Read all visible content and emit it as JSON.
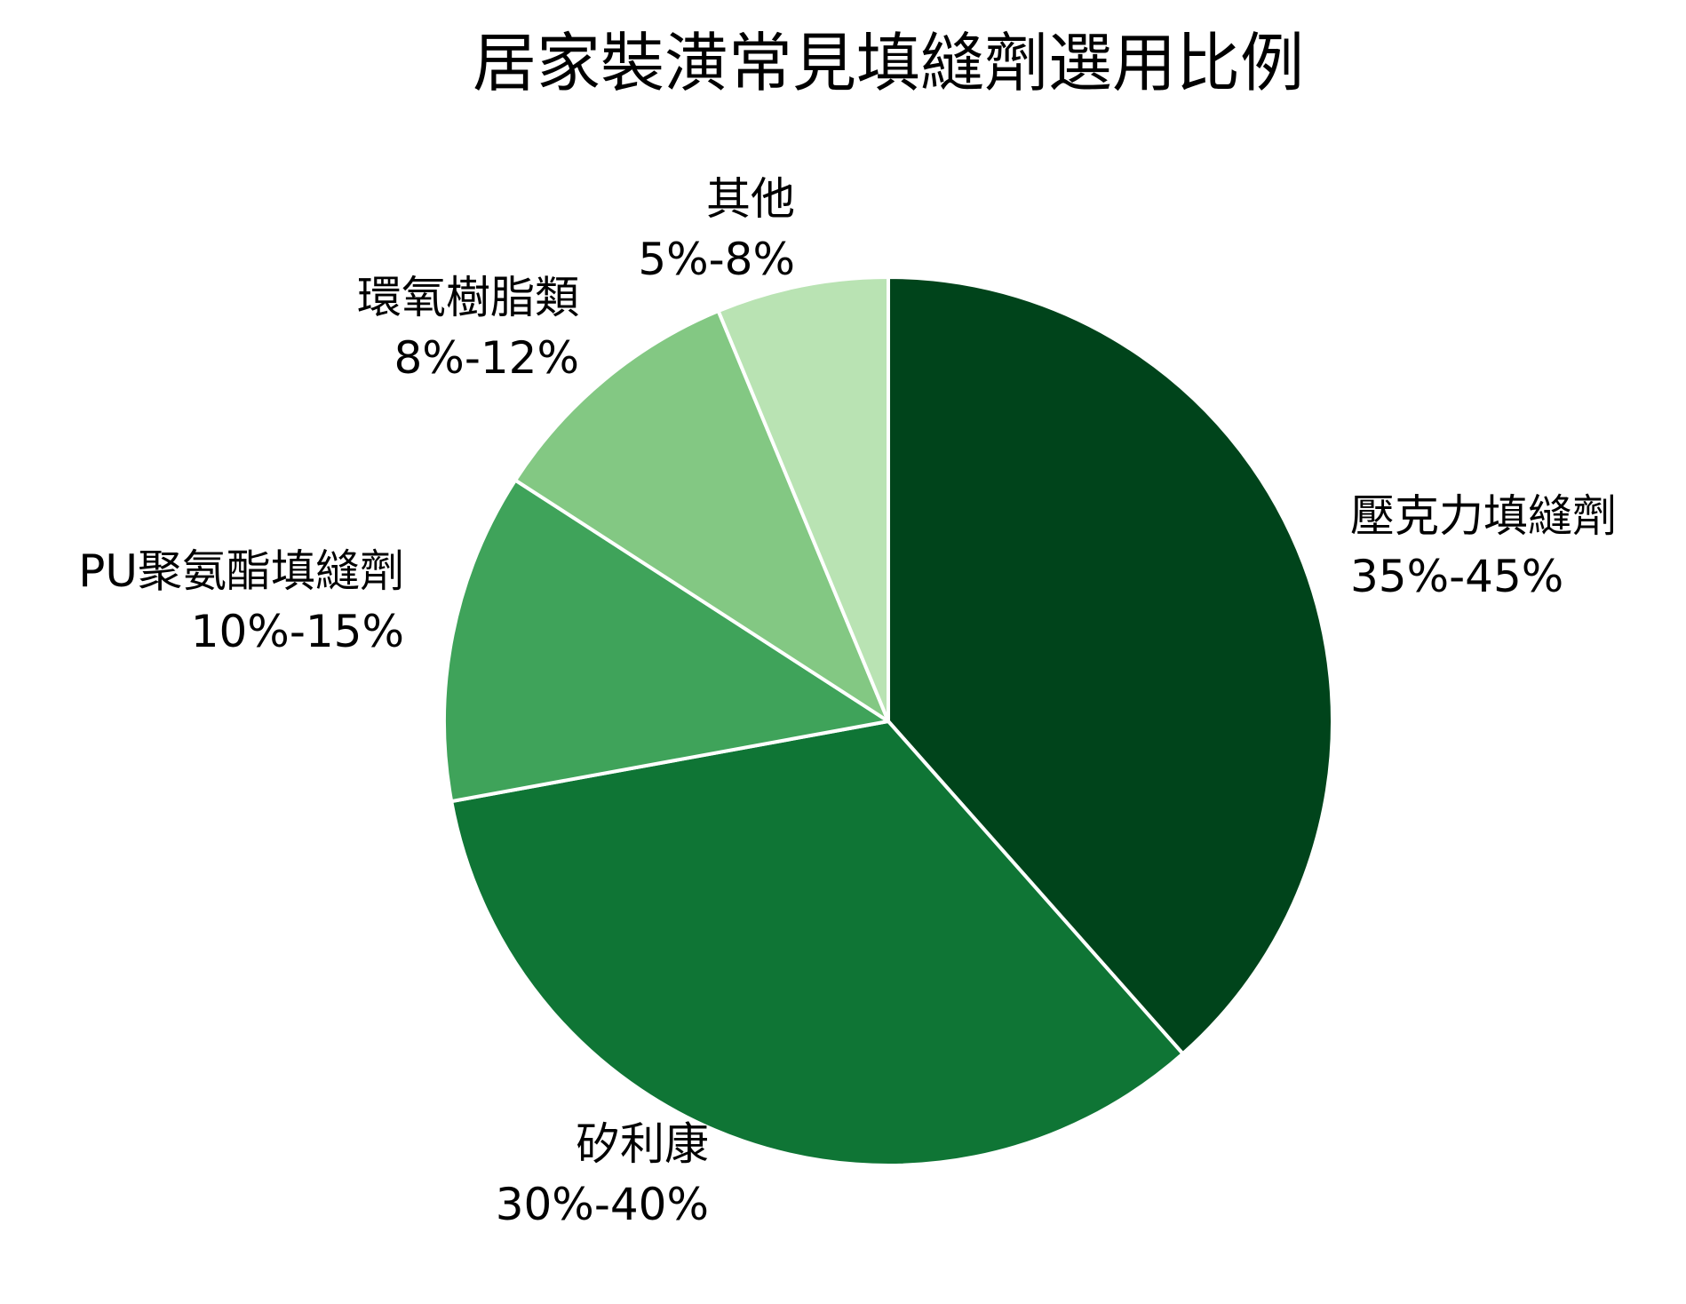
{
  "chart_data": {
    "type": "pie",
    "title": "居家裝潢常見填縫劑選用比例",
    "slices": [
      {
        "name": "壓克力填縫劑",
        "range": "35%-45%",
        "value": 40,
        "color": "#00441b"
      },
      {
        "name": "矽利康",
        "range": "30%-40%",
        "value": 35,
        "color": "#0f7535"
      },
      {
        "name": "PU聚氨酯填縫劑",
        "range": "10%-15%",
        "value": 12.5,
        "color": "#3fa35a"
      },
      {
        "name": "環氧樹脂類",
        "range": "8%-12%",
        "value": 10,
        "color": "#83c883"
      },
      {
        "name": "其他",
        "range": "5%-8%",
        "value": 6.5,
        "color": "#b9e3b3"
      }
    ],
    "separator_color": "#ffffff",
    "start": "12 o'clock",
    "direction": "clockwise"
  }
}
